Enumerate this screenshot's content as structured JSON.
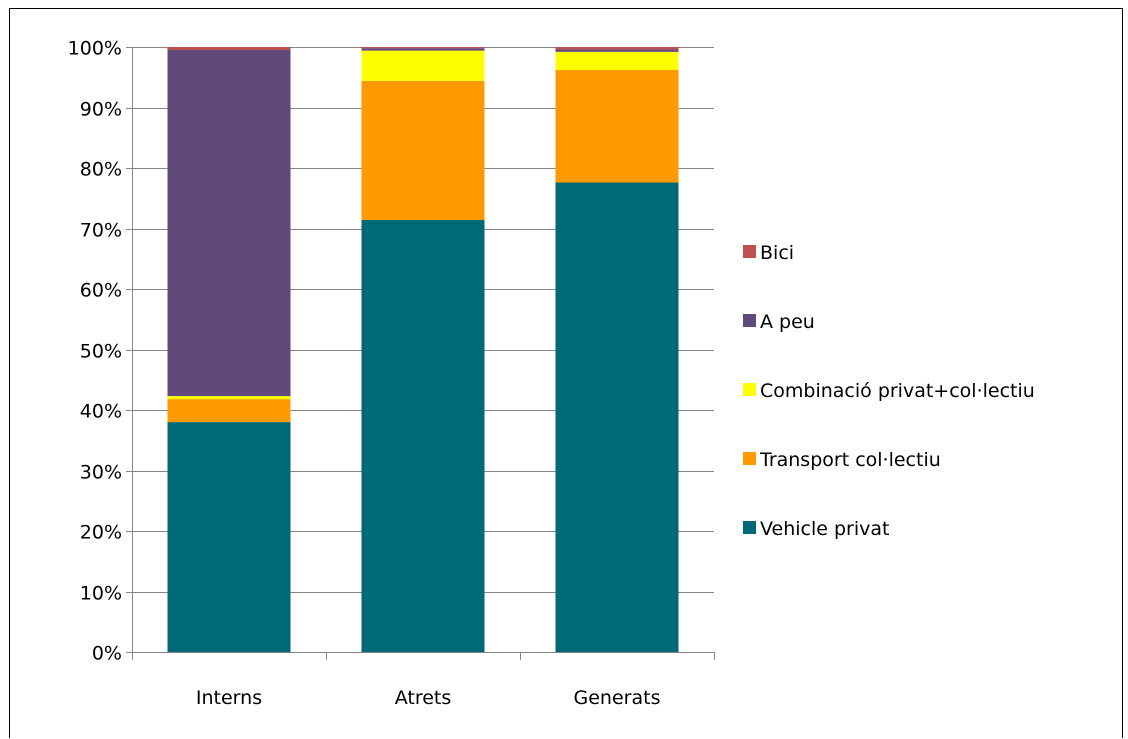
{
  "chart_data": {
    "type": "bar",
    "stacked": true,
    "normalized": true,
    "categories": [
      "Interns",
      "Atrets",
      "Generats"
    ],
    "series": [
      {
        "name": "Vehicle privat",
        "color": "#006978",
        "values": [
          38.0,
          71.4,
          77.6
        ]
      },
      {
        "name": "Transport col·lectiu",
        "color": "#FF9A00",
        "values": [
          3.8,
          23.0,
          18.6
        ]
      },
      {
        "name": "Combinació privat+col·lectiu",
        "color": "#FFFF00",
        "values": [
          0.5,
          5.0,
          3.0
        ]
      },
      {
        "name": "A peu",
        "color": "#604A7B",
        "values": [
          57.2,
          0.4,
          0.4
        ]
      },
      {
        "name": "Bici",
        "color": "#C0504D",
        "values": [
          0.5,
          0.2,
          0.4
        ]
      }
    ],
    "yticks": [
      "0%",
      "10%",
      "20%",
      "30%",
      "40%",
      "50%",
      "60%",
      "70%",
      "80%",
      "90%",
      "100%"
    ],
    "ylim": [
      0,
      100
    ],
    "grid": true,
    "legend_position": "right",
    "legend_order": [
      "Bici",
      "A peu",
      "Combinació privat+col·lectiu",
      "Transport col·lectiu",
      "Vehicle privat"
    ]
  }
}
